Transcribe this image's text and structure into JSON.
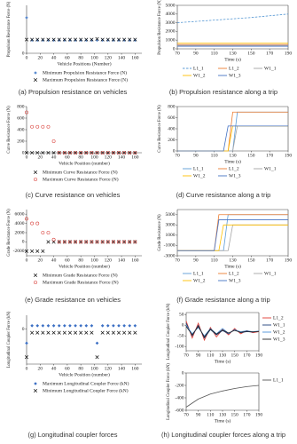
{
  "chart_data": [
    {
      "type": "scatter",
      "caption": "(a) Propulsion resistance on vehicles",
      "y_label": "Propulsion Resistance Force (N)",
      "x_label": "Vehicle Positions (Number)",
      "xlim": [
        0,
        170
      ],
      "xticks": [
        0,
        20,
        40,
        60,
        80,
        100,
        120,
        140,
        160
      ],
      "ylim": [
        0,
        3500
      ],
      "yticks": [
        0
      ],
      "legend": "bottom",
      "x": [
        0,
        8,
        16,
        24,
        32,
        40,
        48,
        56,
        64,
        72,
        80,
        88,
        96,
        104,
        112,
        120,
        128,
        136,
        144,
        152,
        160
      ],
      "series": [
        {
          "name": "Minimum Propulsion Resistance Force (N)",
          "color": "#5b8bd0",
          "marker": "diamond",
          "values": [
            2600,
            950,
            950,
            950,
            950,
            950,
            950,
            950,
            950,
            950,
            950,
            950,
            950,
            950,
            950,
            950,
            950,
            950,
            950,
            950,
            950
          ]
        },
        {
          "name": "Maximum Propulsion Resistance Force (N)",
          "color": "#111111",
          "marker": "x",
          "values": [
            1000,
            1000,
            1000,
            1000,
            1000,
            1000,
            1000,
            1000,
            1000,
            1000,
            1000,
            1000,
            1000,
            1050,
            1000,
            1000,
            1000,
            1000,
            1000,
            1000,
            1000
          ]
        }
      ]
    },
    {
      "type": "line",
      "caption": "(b) Propulsion resistance along a trip",
      "y_label": "Propulsion Resistance Force (N)",
      "x_label": "Time (s)",
      "xlim": [
        70,
        190
      ],
      "xticks": [
        70,
        90,
        110,
        130,
        150,
        170,
        190
      ],
      "ylim": [
        0,
        5000
      ],
      "yticks": [
        0,
        1000,
        2000,
        3000,
        4000,
        5000
      ],
      "legend": "bottom",
      "x": [
        70,
        90,
        110,
        130,
        150,
        170,
        190
      ],
      "series": [
        {
          "name": "L1_1",
          "color": "#5b9bd5",
          "dash": true,
          "values": [
            3000,
            3150,
            3300,
            3450,
            3600,
            3800,
            4000
          ]
        },
        {
          "name": "L1_2",
          "color": "#ed7d31",
          "values": [
            500,
            500,
            500,
            500,
            500,
            500,
            500
          ]
        },
        {
          "name": "W1_1",
          "color": "#a5a5a5",
          "values": [
            400,
            400,
            400,
            400,
            400,
            400,
            400
          ]
        },
        {
          "name": "W1_2",
          "color": "#ffc000",
          "values": [
            650,
            650,
            650,
            650,
            650,
            650,
            650
          ]
        },
        {
          "name": "W1_3",
          "color": "#4472c4",
          "values": [
            300,
            300,
            300,
            300,
            300,
            300,
            300
          ]
        }
      ]
    },
    {
      "type": "scatter",
      "caption": "(c) Curve resistance on vehicles",
      "y_label": "Curve Resistance Force (N)",
      "x_label": "Vehicle Position (number)",
      "xlim": [
        0,
        170
      ],
      "xticks": [
        0,
        20,
        40,
        60,
        80,
        100,
        120,
        140,
        160
      ],
      "ylim": [
        0,
        800
      ],
      "yticks": [
        0,
        200,
        400,
        600,
        800
      ],
      "legend": "bottom",
      "x": [
        0,
        8,
        16,
        24,
        32,
        40,
        48,
        56,
        64,
        72,
        80,
        88,
        96,
        104,
        112,
        120,
        128,
        136,
        144,
        152,
        160
      ],
      "series": [
        {
          "name": "Minimum Curve Resistance Force (N)",
          "color": "#111111",
          "marker": "x",
          "values": [
            0,
            0,
            0,
            0,
            0,
            0,
            0,
            0,
            0,
            0,
            0,
            0,
            0,
            0,
            0,
            0,
            0,
            0,
            0,
            0,
            0
          ]
        },
        {
          "name": "Maximum Curve Resistance Force (N)",
          "color": "#d9403a",
          "marker": "circle",
          "values": [
            700,
            450,
            450,
            450,
            450,
            200,
            0,
            0,
            0,
            0,
            0,
            0,
            0,
            0,
            0,
            0,
            0,
            0,
            0,
            0,
            0
          ]
        }
      ]
    },
    {
      "type": "line",
      "caption": "(d) Curve resistance along a trip",
      "y_label": "Curve Resistance Force (N)",
      "x_label": "Time (s)",
      "xlim": [
        70,
        190
      ],
      "xticks": [
        70,
        90,
        110,
        130,
        150,
        170,
        190
      ],
      "ylim": [
        0,
        800
      ],
      "yticks": [
        0,
        200,
        400,
        600,
        800
      ],
      "legend": "bottom",
      "x": [
        70,
        120,
        125,
        130,
        135,
        140,
        145,
        190
      ],
      "series": [
        {
          "name": "L1_1",
          "color": "#5b9bd5",
          "values": [
            0,
            0,
            0,
            0,
            700,
            700,
            700,
            700
          ]
        },
        {
          "name": "L1_2",
          "color": "#ed7d31",
          "values": [
            0,
            0,
            0,
            700,
            700,
            700,
            700,
            700
          ]
        },
        {
          "name": "W1_1",
          "color": "#a5a5a5",
          "values": [
            0,
            0,
            0,
            0,
            450,
            450,
            450,
            450
          ]
        },
        {
          "name": "W1_2",
          "color": "#ffc000",
          "values": [
            0,
            0,
            0,
            450,
            450,
            450,
            450,
            450
          ]
        },
        {
          "name": "W1_3",
          "color": "#4472c4",
          "values": [
            0,
            0,
            450,
            450,
            450,
            450,
            450,
            450
          ]
        }
      ]
    },
    {
      "type": "scatter",
      "caption": "(e) Grade resistance on vehicles",
      "y_label": "Grade Resistance Force (N)",
      "x_label": "Vehicle Position (number)",
      "xlim": [
        0,
        170
      ],
      "xticks": [
        0,
        20,
        40,
        60,
        80,
        100,
        120,
        140,
        160
      ],
      "ylim": [
        -3000,
        7000
      ],
      "yticks": [
        -2000,
        0,
        2000,
        4000,
        6000
      ],
      "legend": "bottom",
      "x": [
        0,
        8,
        16,
        24,
        32,
        40,
        48,
        56,
        64,
        72,
        80,
        88,
        96,
        104,
        112,
        120,
        128,
        136,
        144,
        152,
        160
      ],
      "series": [
        {
          "name": "Minimum Grade Resistance Force (N)",
          "color": "#111111",
          "marker": "x",
          "values": [
            -2000,
            -2000,
            -2000,
            -2000,
            0,
            0,
            0,
            0,
            0,
            0,
            0,
            0,
            0,
            0,
            0,
            0,
            0,
            0,
            0,
            0,
            0
          ]
        },
        {
          "name": "Maximum Grade Resistance Force (N)",
          "color": "#d9403a",
          "marker": "circle",
          "values": [
            5000,
            4000,
            4000,
            2000,
            2000,
            500,
            0,
            0,
            0,
            0,
            0,
            0,
            0,
            0,
            0,
            0,
            0,
            0,
            0,
            0,
            0
          ]
        }
      ]
    },
    {
      "type": "line",
      "caption": "(f) Grade resistance along a trip",
      "y_label": "Grade Resistance (N)",
      "x_label": "Time (s)",
      "xlim": [
        70,
        190
      ],
      "xticks": [
        70,
        90,
        110,
        130,
        150,
        170,
        190
      ],
      "ylim": [
        -3000,
        6000
      ],
      "yticks": [
        -3000,
        -1000,
        1000,
        3000,
        5000
      ],
      "legend": "bottom",
      "x": [
        70,
        110,
        115,
        120,
        125,
        130,
        135,
        190
      ],
      "series": [
        {
          "name": "L1_1",
          "color": "#5b9bd5",
          "values": [
            -2000,
            -2000,
            -2000,
            -2000,
            5000,
            5000,
            5000,
            5000
          ]
        },
        {
          "name": "L1_2",
          "color": "#ed7d31",
          "values": [
            -2000,
            -2000,
            5000,
            5000,
            5000,
            5000,
            5000,
            5000
          ]
        },
        {
          "name": "W1_1",
          "color": "#a5a5a5",
          "values": [
            -2000,
            -2000,
            -2000,
            -2000,
            -2000,
            3000,
            3000,
            3000
          ]
        },
        {
          "name": "W1_2",
          "color": "#ffc000",
          "values": [
            -2000,
            -2000,
            -2000,
            3000,
            3000,
            3000,
            3000,
            3000
          ]
        },
        {
          "name": "W1_3",
          "color": "#4472c4",
          "values": [
            -2000,
            -2000,
            4000,
            4000,
            4000,
            4000,
            4000,
            4000
          ]
        }
      ]
    },
    {
      "type": "scatter",
      "caption": "(g) Longitudinal coupler forces",
      "y_label": "Longitudinal Coupler Force (kN)",
      "x_label": "Vehicle Position (number)",
      "xlim": [
        0,
        170
      ],
      "xticks": [
        0,
        20,
        40,
        60,
        80,
        100,
        120,
        140,
        160
      ],
      "ylim": [
        -500,
        200
      ],
      "yticks": [
        0
      ],
      "legend": "bottom",
      "x": [
        0,
        8,
        16,
        24,
        32,
        40,
        48,
        56,
        64,
        72,
        80,
        88,
        96,
        104,
        112,
        120,
        128,
        136,
        144,
        152,
        160
      ],
      "series": [
        {
          "name": "Maximum Longitudinal Coupler Force (kN)",
          "color": "#3b6fc4",
          "marker": "diamond",
          "values": [
            -200,
            50,
            50,
            50,
            50,
            50,
            50,
            50,
            50,
            50,
            50,
            50,
            50,
            -200,
            50,
            50,
            50,
            50,
            50,
            50,
            50
          ]
        },
        {
          "name": "Minimum Longitudinal Coupler Force (kN)",
          "color": "#111111",
          "marker": "x",
          "values": [
            -400,
            -50,
            -50,
            -50,
            -50,
            -50,
            -50,
            -50,
            -50,
            -50,
            -50,
            -50,
            -50,
            -400,
            -50,
            -50,
            -50,
            -50,
            -50,
            -50,
            -50
          ]
        }
      ]
    },
    {
      "type": "line",
      "y_label": "Longitudinal Coupler Force (kN)",
      "x_label": "Time (s)",
      "xlim": [
        70,
        190
      ],
      "xticks": [
        70,
        90,
        110,
        130,
        150,
        170,
        190
      ],
      "ylim": [
        -120,
        60
      ],
      "yticks": [
        -100,
        -50,
        0,
        50
      ],
      "legend": "right",
      "x": [
        70,
        80,
        90,
        100,
        110,
        120,
        130,
        140,
        150,
        160,
        170,
        180,
        190
      ],
      "series": [
        {
          "name": "L1_2",
          "color": "#e03a2f",
          "values": [
            20,
            -60,
            10,
            -70,
            -10,
            -55,
            -20,
            -45,
            -15,
            -40,
            -25,
            -35,
            -30
          ]
        },
        {
          "name": "W1_1",
          "color": "#1f3f7a",
          "values": [
            10,
            -50,
            0,
            -60,
            -20,
            -45,
            -25,
            -40,
            -20,
            -35,
            -30,
            -32,
            -28
          ]
        },
        {
          "name": "W1_2",
          "color": "#4a90d9",
          "values": [
            0,
            -40,
            -10,
            -50,
            -15,
            -40,
            -15,
            -38,
            -22,
            -30,
            -26,
            -30,
            -27
          ]
        },
        {
          "name": "W1_3",
          "color": "#222222",
          "values": [
            -5,
            -45,
            -5,
            -55,
            -18,
            -42,
            -22,
            -36,
            -24,
            -33,
            -28,
            -31,
            -29
          ]
        }
      ]
    },
    {
      "type": "line",
      "caption": "(h) Longitudinal coupler forces along a trip",
      "y_label": "Longitudinal Coupler Force (kN)",
      "x_label": "Time (s)",
      "xlim": [
        70,
        190
      ],
      "xticks": [
        70,
        90,
        110,
        130,
        150,
        170,
        190
      ],
      "ylim": [
        -600,
        0
      ],
      "yticks": [
        -600,
        -400,
        -200,
        0
      ],
      "legend": "right",
      "x": [
        70,
        90,
        110,
        130,
        150,
        170,
        190
      ],
      "series": [
        {
          "name": "L1_1",
          "color": "#555555",
          "values": [
            -550,
            -420,
            -340,
            -290,
            -250,
            -220,
            -200
          ]
        }
      ]
    }
  ]
}
